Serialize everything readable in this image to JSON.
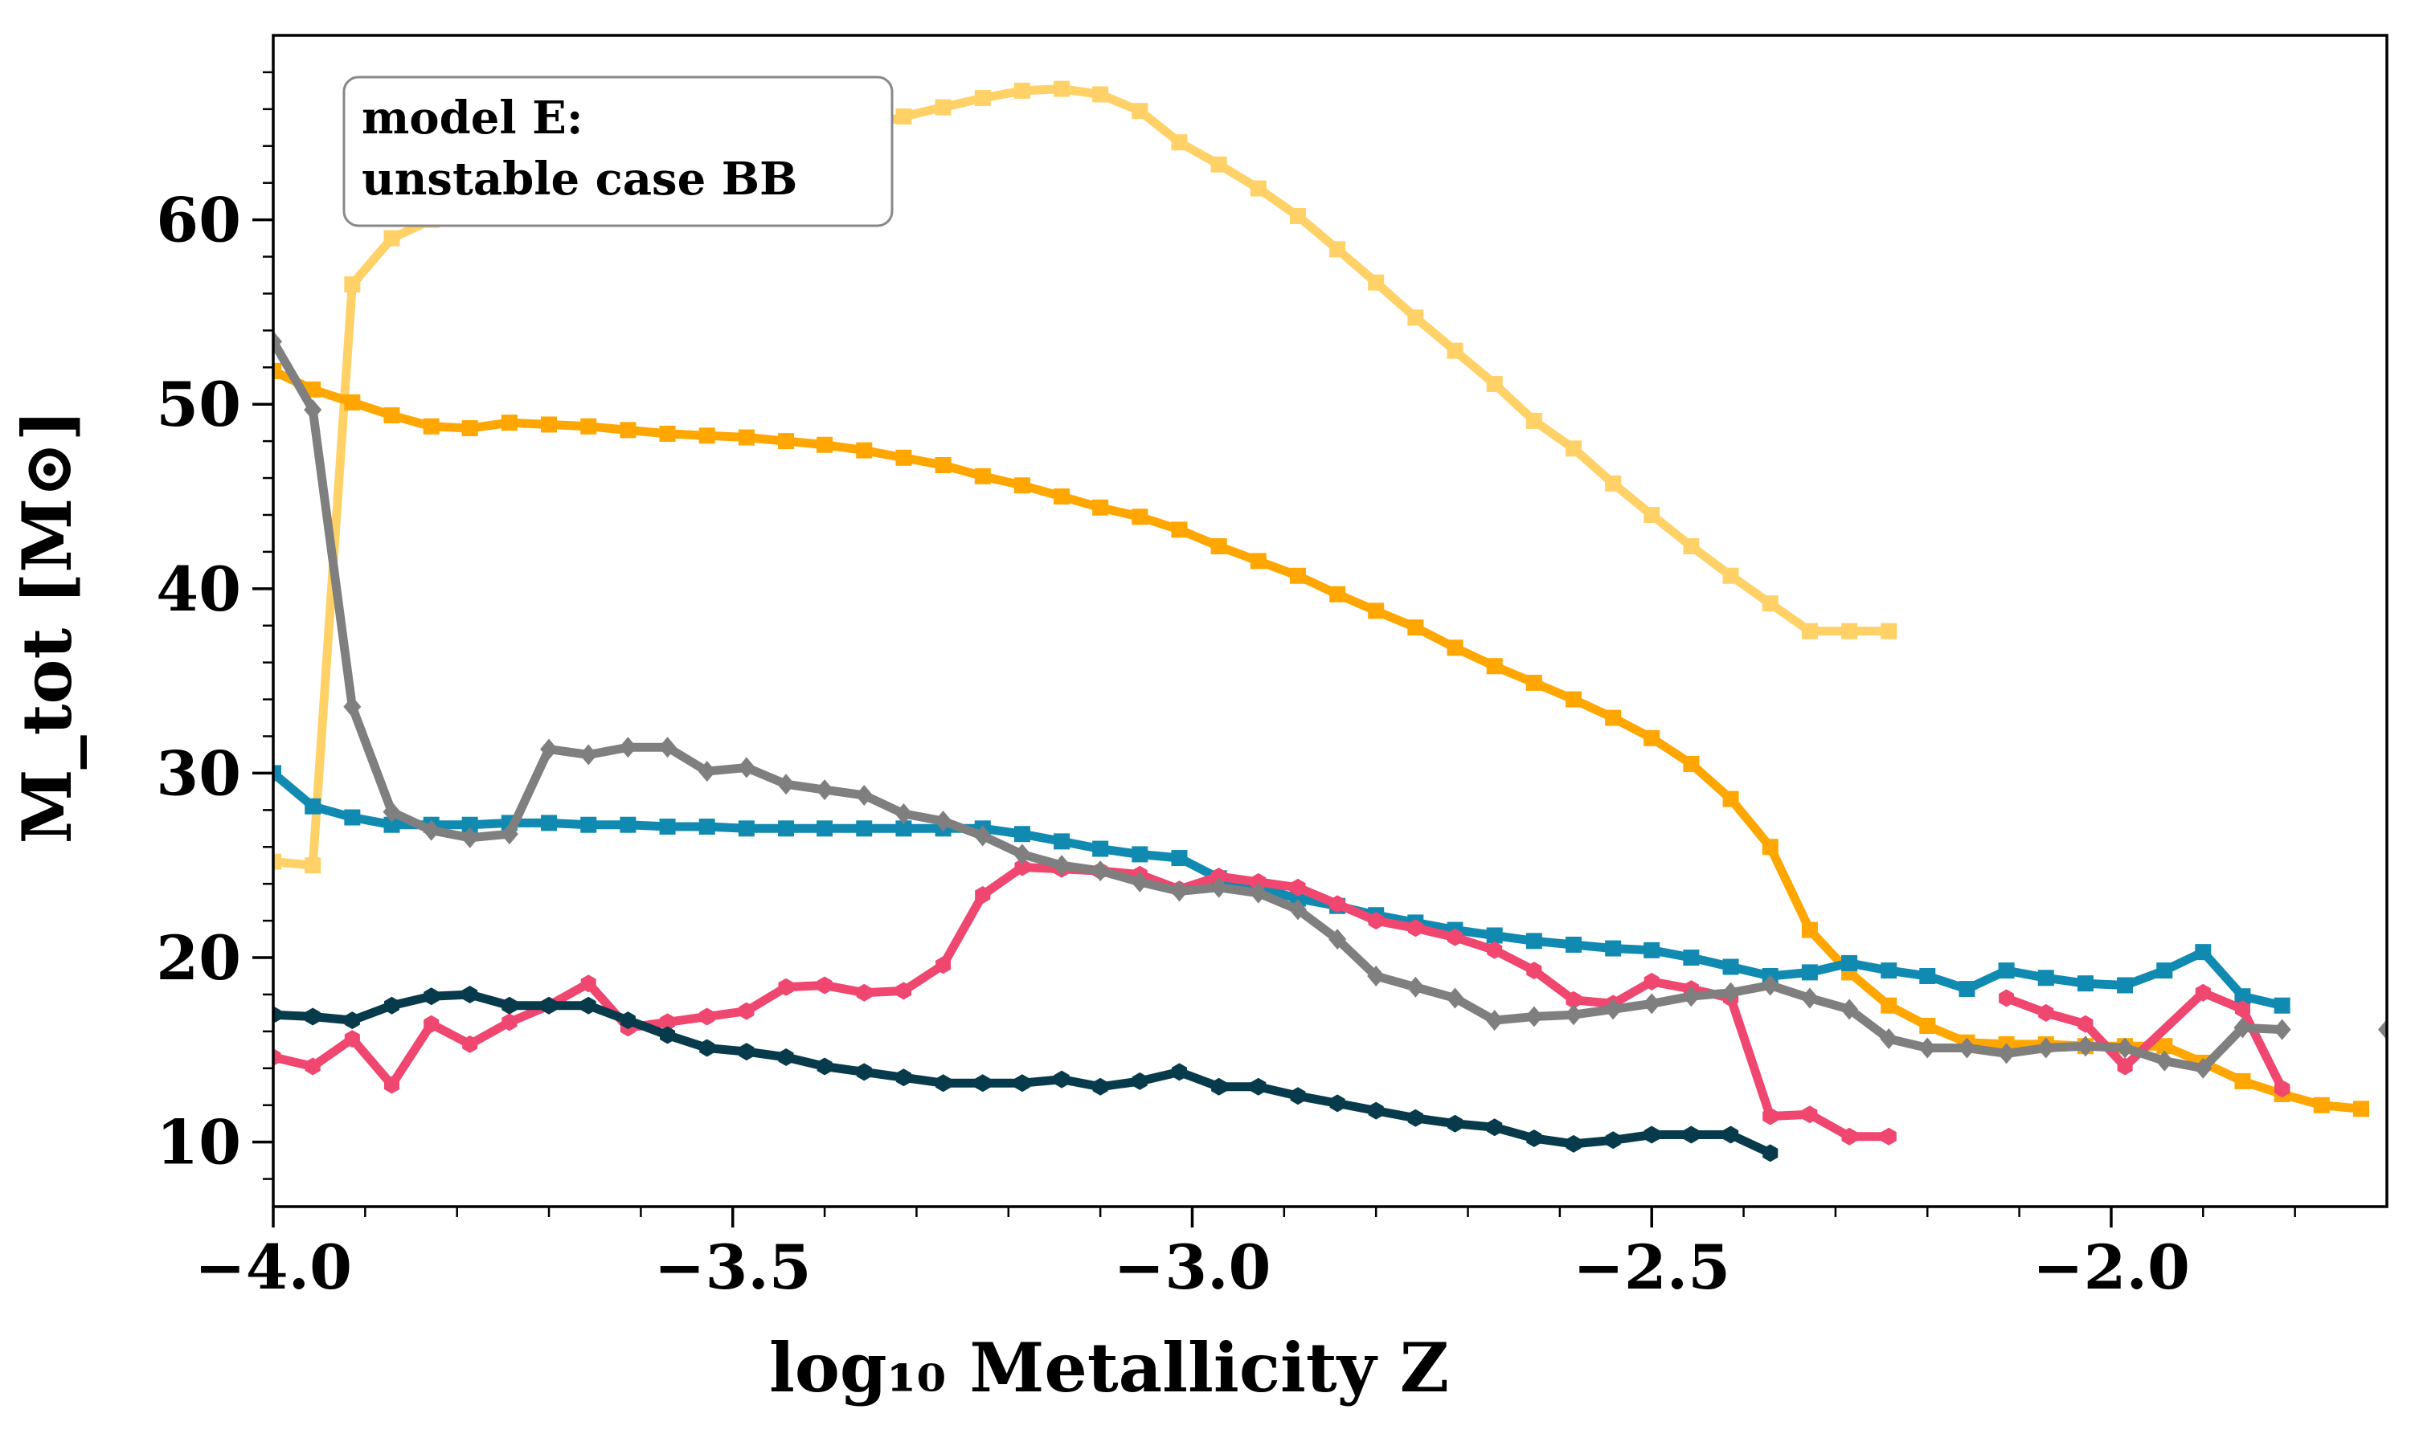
{
  "chart_data": {
    "type": "line",
    "title": "",
    "xlabel": "log₁₀ Metallicity Z",
    "ylabel": "M_tot [M⊙]",
    "xlim": [
      -4.0,
      -1.7
    ],
    "ylim": [
      6.5,
      70
    ],
    "xticks": [
      -4.0,
      -3.5,
      -3.0,
      -2.5,
      -2.0
    ],
    "xtick_labels": [
      "−4.0",
      "−3.5",
      "−3.0",
      "−2.5",
      "−2.0"
    ],
    "yticks": [
      10,
      20,
      30,
      40,
      50,
      60
    ],
    "ytick_labels": [
      "10",
      "20",
      "30",
      "40",
      "50",
      "60"
    ],
    "grid": false,
    "annotation": [
      "model E:",
      "unstable case BB"
    ],
    "series": [
      {
        "color": "#FFD166",
        "marker": "square",
        "x": [
          -4.0,
          -3.957,
          -3.914,
          -3.871,
          -3.828,
          -3.786,
          -3.743,
          -3.7,
          -3.657,
          -3.614,
          -3.571,
          -3.528,
          -3.485,
          -3.442,
          -3.4,
          -3.357,
          -3.314,
          -3.271,
          -3.228,
          -3.185,
          -3.142,
          -3.1,
          -3.057,
          -3.014,
          -2.971,
          -2.928,
          -2.885,
          -2.842,
          -2.8,
          -2.757,
          -2.714,
          -2.671,
          -2.628,
          -2.585,
          -2.542,
          -2.5,
          -2.457,
          -2.414,
          -2.371,
          -2.328,
          -2.285,
          -2.242
        ],
        "y": [
          25.2,
          25.0,
          56.5,
          59.0,
          60.0,
          61.0,
          60.5,
          61.0,
          62.0,
          62.5,
          63.0,
          63.5,
          63.8,
          64.2,
          64.6,
          65.0,
          65.6,
          66.1,
          66.6,
          67.0,
          67.1,
          66.8,
          65.9,
          64.2,
          63.0,
          61.7,
          60.2,
          58.4,
          56.6,
          54.7,
          52.9,
          51.1,
          49.1,
          47.6,
          45.7,
          44.0,
          42.3,
          40.7,
          39.2,
          37.7,
          37.7,
          37.7
        ]
      },
      {
        "color": "#FFA600",
        "marker": "square",
        "x": [
          -4.0,
          -3.957,
          -3.914,
          -3.871,
          -3.828,
          -3.786,
          -3.743,
          -3.7,
          -3.657,
          -3.614,
          -3.571,
          -3.528,
          -3.485,
          -3.442,
          -3.4,
          -3.357,
          -3.314,
          -3.271,
          -3.228,
          -3.185,
          -3.142,
          -3.1,
          -3.057,
          -3.014,
          -2.971,
          -2.928,
          -2.885,
          -2.842,
          -2.8,
          -2.757,
          -2.714,
          -2.671,
          -2.628,
          -2.585,
          -2.542,
          -2.5,
          -2.457,
          -2.414,
          -2.371,
          -2.328,
          -2.285,
          -2.242,
          -2.2,
          -2.157,
          -2.114,
          -2.071,
          -2.028,
          -1.985,
          -1.942,
          -1.9,
          -1.857,
          -1.814,
          -1.771,
          -1.728
        ],
        "y": [
          51.8,
          50.8,
          50.1,
          49.4,
          48.8,
          48.7,
          49.0,
          48.9,
          48.8,
          48.6,
          48.4,
          48.3,
          48.2,
          48.0,
          47.8,
          47.5,
          47.1,
          46.7,
          46.1,
          45.6,
          45.0,
          44.4,
          43.9,
          43.2,
          42.3,
          41.5,
          40.7,
          39.7,
          38.8,
          37.9,
          36.8,
          35.8,
          34.9,
          34.0,
          33.0,
          31.9,
          30.5,
          28.6,
          26.0,
          21.5,
          19.2,
          17.4,
          16.3,
          15.4,
          15.3,
          15.3,
          15.2,
          15.2,
          15.2,
          14.3,
          13.3,
          12.6,
          12.0,
          11.8
        ]
      },
      {
        "color": "#118AB2",
        "marker": "square",
        "x": [
          -4.0,
          -3.957,
          -3.914,
          -3.871,
          -3.828,
          -3.786,
          -3.743,
          -3.7,
          -3.657,
          -3.614,
          -3.571,
          -3.528,
          -3.485,
          -3.442,
          -3.4,
          -3.357,
          -3.314,
          -3.271,
          -3.228,
          -3.185,
          -3.142,
          -3.1,
          -3.057,
          -3.014,
          -2.971,
          -2.928,
          -2.885,
          -2.842,
          -2.8,
          -2.757,
          -2.714,
          -2.671,
          -2.628,
          -2.585,
          -2.542,
          -2.5,
          -2.457,
          -2.414,
          -2.371,
          -2.328,
          -2.285,
          -2.242,
          -2.2,
          -2.157,
          -2.114,
          -2.071,
          -2.028,
          -1.985,
          -1.942,
          -1.9,
          -1.857,
          -1.814
        ],
        "y": [
          30.0,
          28.2,
          27.6,
          27.2,
          27.2,
          27.2,
          27.3,
          27.3,
          27.2,
          27.2,
          27.1,
          27.1,
          27.0,
          27.0,
          27.0,
          27.0,
          27.0,
          27.0,
          27.0,
          26.7,
          26.3,
          25.9,
          25.6,
          25.4,
          24.3,
          23.8,
          23.2,
          22.8,
          22.3,
          21.9,
          21.5,
          21.2,
          20.9,
          20.7,
          20.5,
          20.4,
          20.0,
          19.5,
          19.0,
          19.2,
          19.7,
          19.3,
          19.0,
          18.3,
          19.3,
          18.9,
          18.6,
          18.5,
          19.3,
          20.3,
          17.9,
          17.4
        ]
      },
      {
        "color": "#EF476F",
        "marker": "hexagon",
        "x": [
          -4.0,
          -3.957,
          -3.914,
          -3.871,
          -3.828,
          -3.786,
          -3.743,
          -3.7,
          -3.657,
          -3.614,
          -3.571,
          -3.528,
          -3.485,
          -3.442,
          -3.4,
          -3.357,
          -3.314,
          -3.271,
          -3.228,
          -3.185,
          -3.142,
          -3.1,
          -3.057,
          -3.014,
          -2.971,
          -2.928,
          -2.885,
          -2.842,
          -2.8,
          -2.757,
          -2.714,
          -2.671,
          -2.628,
          -2.585,
          -2.542,
          -2.5,
          -2.457,
          -2.414,
          -2.371,
          -2.328,
          -2.285,
          -2.242
        ],
        "y": [
          14.6,
          14.1,
          15.6,
          13.1,
          16.4,
          15.3,
          16.5,
          17.4,
          18.6,
          16.2,
          16.5,
          16.8,
          17.1,
          18.4,
          18.5,
          18.1,
          18.2,
          19.6,
          23.4,
          24.9,
          24.8,
          24.7,
          24.5,
          23.7,
          24.4,
          24.1,
          23.8,
          22.9,
          22.0,
          21.6,
          21.1,
          20.4,
          19.3,
          17.7,
          17.5,
          18.7,
          18.3,
          17.8,
          11.4,
          11.5,
          10.3,
          10.3
        ]
      },
      {
        "color": "#EF476F",
        "marker": "hexagon",
        "x": [
          -2.114,
          -2.071,
          -2.028,
          -1.985,
          -1.9,
          -1.857,
          -1.814
        ],
        "y": [
          17.8,
          17.0,
          16.4,
          14.1,
          18.1,
          17.2,
          12.9
        ]
      },
      {
        "color": "#073B4C",
        "marker": "hexagon",
        "x": [
          -4.0,
          -3.957,
          -3.914,
          -3.871,
          -3.828,
          -3.786,
          -3.743,
          -3.7,
          -3.657,
          -3.614,
          -3.571,
          -3.528,
          -3.485,
          -3.442,
          -3.4,
          -3.357,
          -3.314,
          -3.271,
          -3.228,
          -3.185,
          -3.142,
          -3.1,
          -3.057,
          -3.014,
          -2.971,
          -2.928,
          -2.885,
          -2.842,
          -2.8,
          -2.757,
          -2.714,
          -2.671,
          -2.628,
          -2.585,
          -2.542,
          -2.5,
          -2.457,
          -2.414,
          -2.371
        ],
        "y": [
          16.9,
          16.8,
          16.6,
          17.4,
          17.9,
          18.0,
          17.4,
          17.4,
          17.4,
          16.6,
          15.8,
          15.1,
          14.9,
          14.6,
          14.1,
          13.8,
          13.5,
          13.2,
          13.2,
          13.2,
          13.4,
          13.0,
          13.3,
          13.8,
          13.0,
          13.0,
          12.5,
          12.1,
          11.7,
          11.3,
          11.0,
          10.8,
          10.2,
          9.9,
          10.1,
          10.4,
          10.4,
          10.4,
          9.4
        ]
      },
      {
        "color": "#7F7F7F",
        "marker": "diamond",
        "x": [
          -4.0,
          -3.957,
          -3.914,
          -3.871,
          -3.828,
          -3.786,
          -3.743,
          -3.7,
          -3.657,
          -3.614,
          -3.571,
          -3.528,
          -3.485,
          -3.442,
          -3.4,
          -3.357,
          -3.314,
          -3.271,
          -3.228,
          -3.185,
          -3.142,
          -3.1,
          -3.057,
          -3.014,
          -2.971,
          -2.928,
          -2.885,
          -2.842,
          -2.8,
          -2.757,
          -2.714,
          -2.671,
          -2.628,
          -2.585,
          -2.542,
          -2.5,
          -2.457,
          -2.414,
          -2.371,
          -2.328,
          -2.285,
          -2.242,
          -2.2,
          -2.157,
          -2.114,
          -2.071,
          -2.028,
          -1.985,
          -1.942,
          -1.9,
          -1.857,
          -1.814
        ],
        "y": [
          53.4,
          49.7,
          33.6,
          27.9,
          26.9,
          26.5,
          26.7,
          31.3,
          31.0,
          31.4,
          31.4,
          30.1,
          30.3,
          29.4,
          29.1,
          28.8,
          27.8,
          27.4,
          26.6,
          25.6,
          25.0,
          24.7,
          24.1,
          23.6,
          23.8,
          23.5,
          22.6,
          21.0,
          19.0,
          18.4,
          17.8,
          16.6,
          16.8,
          16.9,
          17.2,
          17.5,
          17.9,
          18.1,
          18.5,
          17.8,
          17.2,
          15.6,
          15.1,
          15.1,
          14.8,
          15.1,
          15.2,
          15.1,
          14.4,
          14.0,
          16.2,
          16.1
        ]
      },
      {
        "color": "#7F7F7F",
        "marker": "diamond",
        "x": [
          -1.7
        ],
        "y": [
          16.1
        ]
      }
    ]
  }
}
